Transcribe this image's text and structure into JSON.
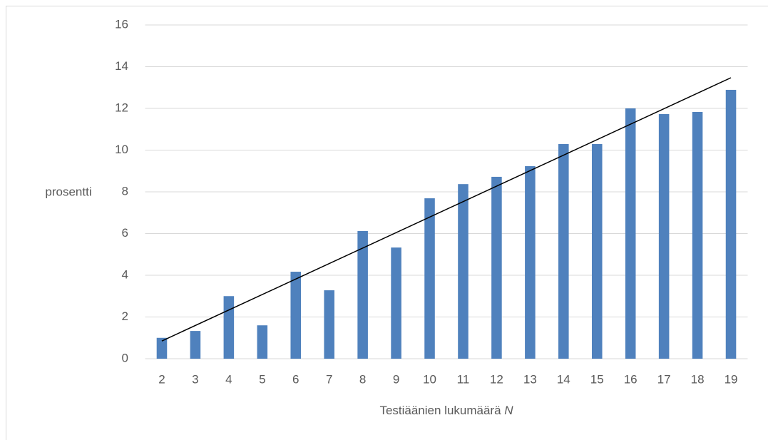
{
  "chart_data": {
    "type": "bar",
    "y_label": "prosentti",
    "x_label": {
      "text": "Testiäänien lukumäärä",
      "variable": "N"
    },
    "categories": [
      2,
      3,
      4,
      5,
      6,
      7,
      8,
      9,
      10,
      11,
      12,
      13,
      14,
      15,
      16,
      17,
      18,
      19
    ],
    "values": [
      1.0,
      1.33,
      3.0,
      1.6,
      4.17,
      3.28,
      6.12,
      5.33,
      7.69,
      8.37,
      8.72,
      9.23,
      10.29,
      10.29,
      12.0,
      11.73,
      11.83,
      12.89
    ],
    "color": "#4f81bd",
    "trendline": {
      "color": "#000000",
      "start": 0.85,
      "end": 13.47
    },
    "ylim": [
      0,
      16
    ],
    "yticks": [
      0,
      2,
      4,
      6,
      8,
      10,
      12,
      14,
      16
    ],
    "grid": true
  }
}
